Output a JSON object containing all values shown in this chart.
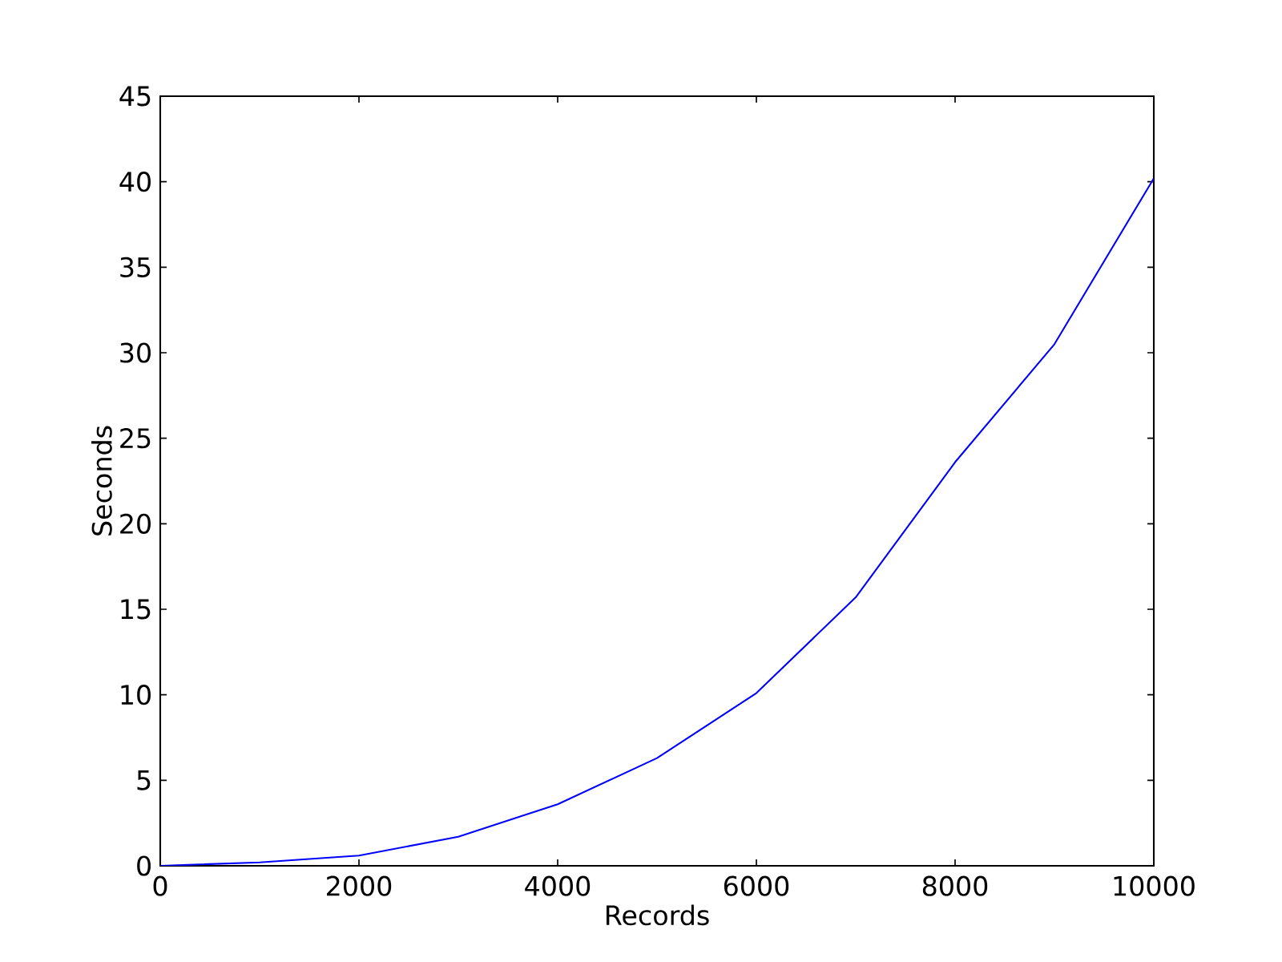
{
  "chart_data": {
    "type": "line",
    "xlabel": "Records",
    "ylabel": "Seconds",
    "x": [
      0,
      1000,
      2000,
      3000,
      4000,
      5000,
      6000,
      7000,
      8000,
      9000,
      10000
    ],
    "series": [
      {
        "color": "#0000ff",
        "values": [
          0,
          0.2,
          0.6,
          1.7,
          3.6,
          6.3,
          10.1,
          15.7,
          23.6,
          30.5,
          40.2
        ],
        "line_style": "solid"
      }
    ],
    "xlim": [
      0,
      10000
    ],
    "ylim": [
      0,
      45
    ],
    "xticks": [
      0,
      2000,
      4000,
      6000,
      8000,
      10000
    ],
    "yticks": [
      0,
      5,
      10,
      15,
      20,
      25,
      30,
      35,
      40,
      45
    ]
  }
}
